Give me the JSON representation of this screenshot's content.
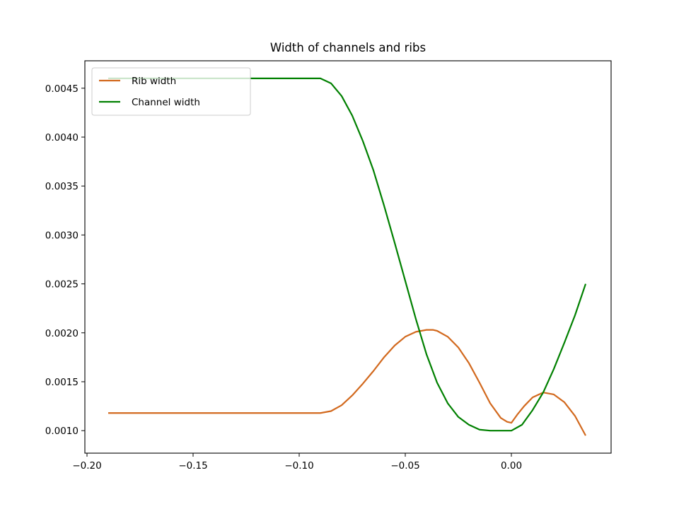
{
  "chart_data": {
    "type": "line",
    "title": "Width of channels and ribs",
    "xlabel": "",
    "ylabel": "",
    "xlim": [
      -0.201,
      0.047
    ],
    "ylim": [
      0.00077,
      0.00478
    ],
    "xticks": [
      -0.2,
      -0.15,
      -0.1,
      -0.05,
      0.0
    ],
    "xtick_labels": [
      "−0.20",
      "−0.15",
      "−0.10",
      "−0.05",
      "0.00"
    ],
    "yticks": [
      0.001,
      0.0015,
      0.002,
      0.0025,
      0.003,
      0.0035,
      0.004,
      0.0045
    ],
    "ytick_labels": [
      "0.0010",
      "0.0015",
      "0.0020",
      "0.0025",
      "0.0030",
      "0.0035",
      "0.0040",
      "0.0045"
    ],
    "grid": false,
    "legend_position": "top-left",
    "series": [
      {
        "name": "Rib width",
        "color": "#d2691e",
        "x": [
          -0.19,
          -0.17,
          -0.15,
          -0.13,
          -0.11,
          -0.09,
          -0.085,
          -0.08,
          -0.075,
          -0.07,
          -0.065,
          -0.06,
          -0.055,
          -0.05,
          -0.045,
          -0.04,
          -0.037,
          -0.035,
          -0.03,
          -0.025,
          -0.02,
          -0.015,
          -0.01,
          -0.005,
          -0.002,
          0.0,
          0.003,
          0.006,
          0.01,
          0.015,
          0.02,
          0.025,
          0.03,
          0.035
        ],
        "y": [
          0.00118,
          0.00118,
          0.00118,
          0.00118,
          0.00118,
          0.00118,
          0.0012,
          0.00126,
          0.00136,
          0.00148,
          0.00161,
          0.00175,
          0.00187,
          0.00196,
          0.00201,
          0.00203,
          0.00203,
          0.00202,
          0.00196,
          0.00185,
          0.00169,
          0.00149,
          0.00128,
          0.00113,
          0.00109,
          0.00108,
          0.00117,
          0.00125,
          0.00134,
          0.00139,
          0.00137,
          0.00129,
          0.00115,
          0.00095
        ]
      },
      {
        "name": "Channel width",
        "color": "#008000",
        "x": [
          -0.19,
          -0.17,
          -0.15,
          -0.13,
          -0.11,
          -0.09,
          -0.085,
          -0.08,
          -0.075,
          -0.07,
          -0.065,
          -0.06,
          -0.055,
          -0.05,
          -0.045,
          -0.04,
          -0.035,
          -0.03,
          -0.025,
          -0.02,
          -0.015,
          -0.01,
          -0.005,
          0.0,
          0.005,
          0.01,
          0.015,
          0.02,
          0.025,
          0.03,
          0.035
        ],
        "y": [
          0.0046,
          0.0046,
          0.0046,
          0.0046,
          0.0046,
          0.0046,
          0.00455,
          0.00442,
          0.00422,
          0.00396,
          0.00366,
          0.0033,
          0.00292,
          0.00253,
          0.00214,
          0.00178,
          0.00149,
          0.00128,
          0.00114,
          0.00106,
          0.00101,
          0.001,
          0.001,
          0.001,
          0.00106,
          0.00121,
          0.00139,
          0.00163,
          0.0019,
          0.00218,
          0.0025
        ]
      }
    ]
  }
}
